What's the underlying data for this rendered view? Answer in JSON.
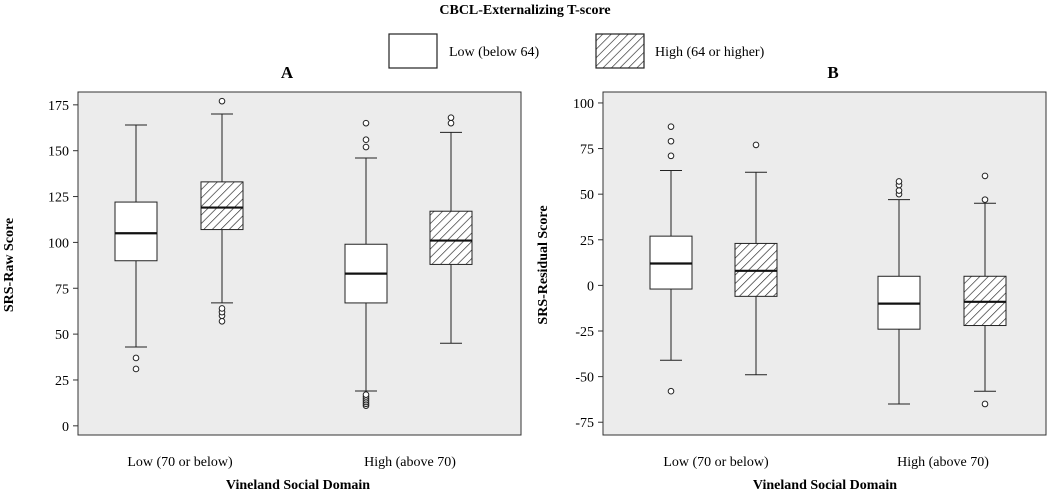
{
  "figure": {
    "legend_title": "CBCL-Externalizing T-score",
    "legend_items": [
      {
        "label": "Low (below 64)",
        "pattern": "none"
      },
      {
        "label": "High (64 or higher)",
        "pattern": "hatch"
      }
    ]
  },
  "chart_data": [
    {
      "panel_label": "A",
      "type": "box",
      "title": "",
      "xlabel": "Vineland Social Domain",
      "ylabel": "SRS-Raw Score",
      "ylim": [
        -5,
        182
      ],
      "yticks": [
        0,
        25,
        50,
        75,
        100,
        125,
        150,
        175
      ],
      "ytick_labels": [
        "0",
        "25",
        "50",
        "75",
        "100",
        "125",
        "150",
        "175"
      ],
      "categories": [
        "Low (70 or below)",
        "High (above 70)"
      ],
      "series": [
        {
          "name": "Low (below 64)",
          "pattern": "none",
          "boxes": [
            {
              "whisker_low": 43,
              "q1": 90,
              "median": 105,
              "q3": 122,
              "whisker_high": 164,
              "outliers": [
                31,
                37
              ]
            },
            {
              "whisker_low": 19,
              "q1": 67,
              "median": 83,
              "q3": 99,
              "whisker_high": 146,
              "outliers": [
                11,
                12,
                13,
                14,
                15,
                16,
                17,
                152,
                156,
                165
              ]
            }
          ]
        },
        {
          "name": "High (64 or higher)",
          "pattern": "hatch",
          "boxes": [
            {
              "whisker_low": 67,
              "q1": 107,
              "median": 119,
              "q3": 133,
              "whisker_high": 170,
              "outliers": [
                57,
                60,
                62,
                64,
                177
              ]
            },
            {
              "whisker_low": 45,
              "q1": 88,
              "median": 101,
              "q3": 117,
              "whisker_high": 160,
              "outliers": [
                165,
                168
              ]
            }
          ]
        }
      ]
    },
    {
      "panel_label": "B",
      "type": "box",
      "title": "",
      "xlabel": "Vineland Social Domain",
      "ylabel": "SRS-Residual Score",
      "ylim": [
        -82,
        106
      ],
      "yticks": [
        -75,
        -50,
        -25,
        0,
        25,
        50,
        75,
        100
      ],
      "ytick_labels": [
        "-75",
        "-50",
        "-25",
        "0",
        "25",
        "50",
        "75",
        "100"
      ],
      "categories": [
        "Low (70 or below)",
        "High (above 70)"
      ],
      "series": [
        {
          "name": "Low (below 64)",
          "pattern": "none",
          "boxes": [
            {
              "whisker_low": -41,
              "q1": -2,
              "median": 12,
              "q3": 27,
              "whisker_high": 63,
              "outliers": [
                -58,
                71,
                79,
                87
              ]
            },
            {
              "whisker_low": -65,
              "q1": -24,
              "median": -10,
              "q3": 5,
              "whisker_high": 47,
              "outliers": [
                50,
                52,
                55,
                57
              ]
            }
          ]
        },
        {
          "name": "High (64 or higher)",
          "pattern": "hatch",
          "boxes": [
            {
              "whisker_low": -49,
              "q1": -6,
              "median": 8,
              "q3": 23,
              "whisker_high": 62,
              "outliers": [
                77
              ]
            },
            {
              "whisker_low": -58,
              "q1": -22,
              "median": -9,
              "q3": 5,
              "whisker_high": 45,
              "outliers": [
                -65,
                47,
                60
              ]
            }
          ]
        }
      ]
    }
  ]
}
